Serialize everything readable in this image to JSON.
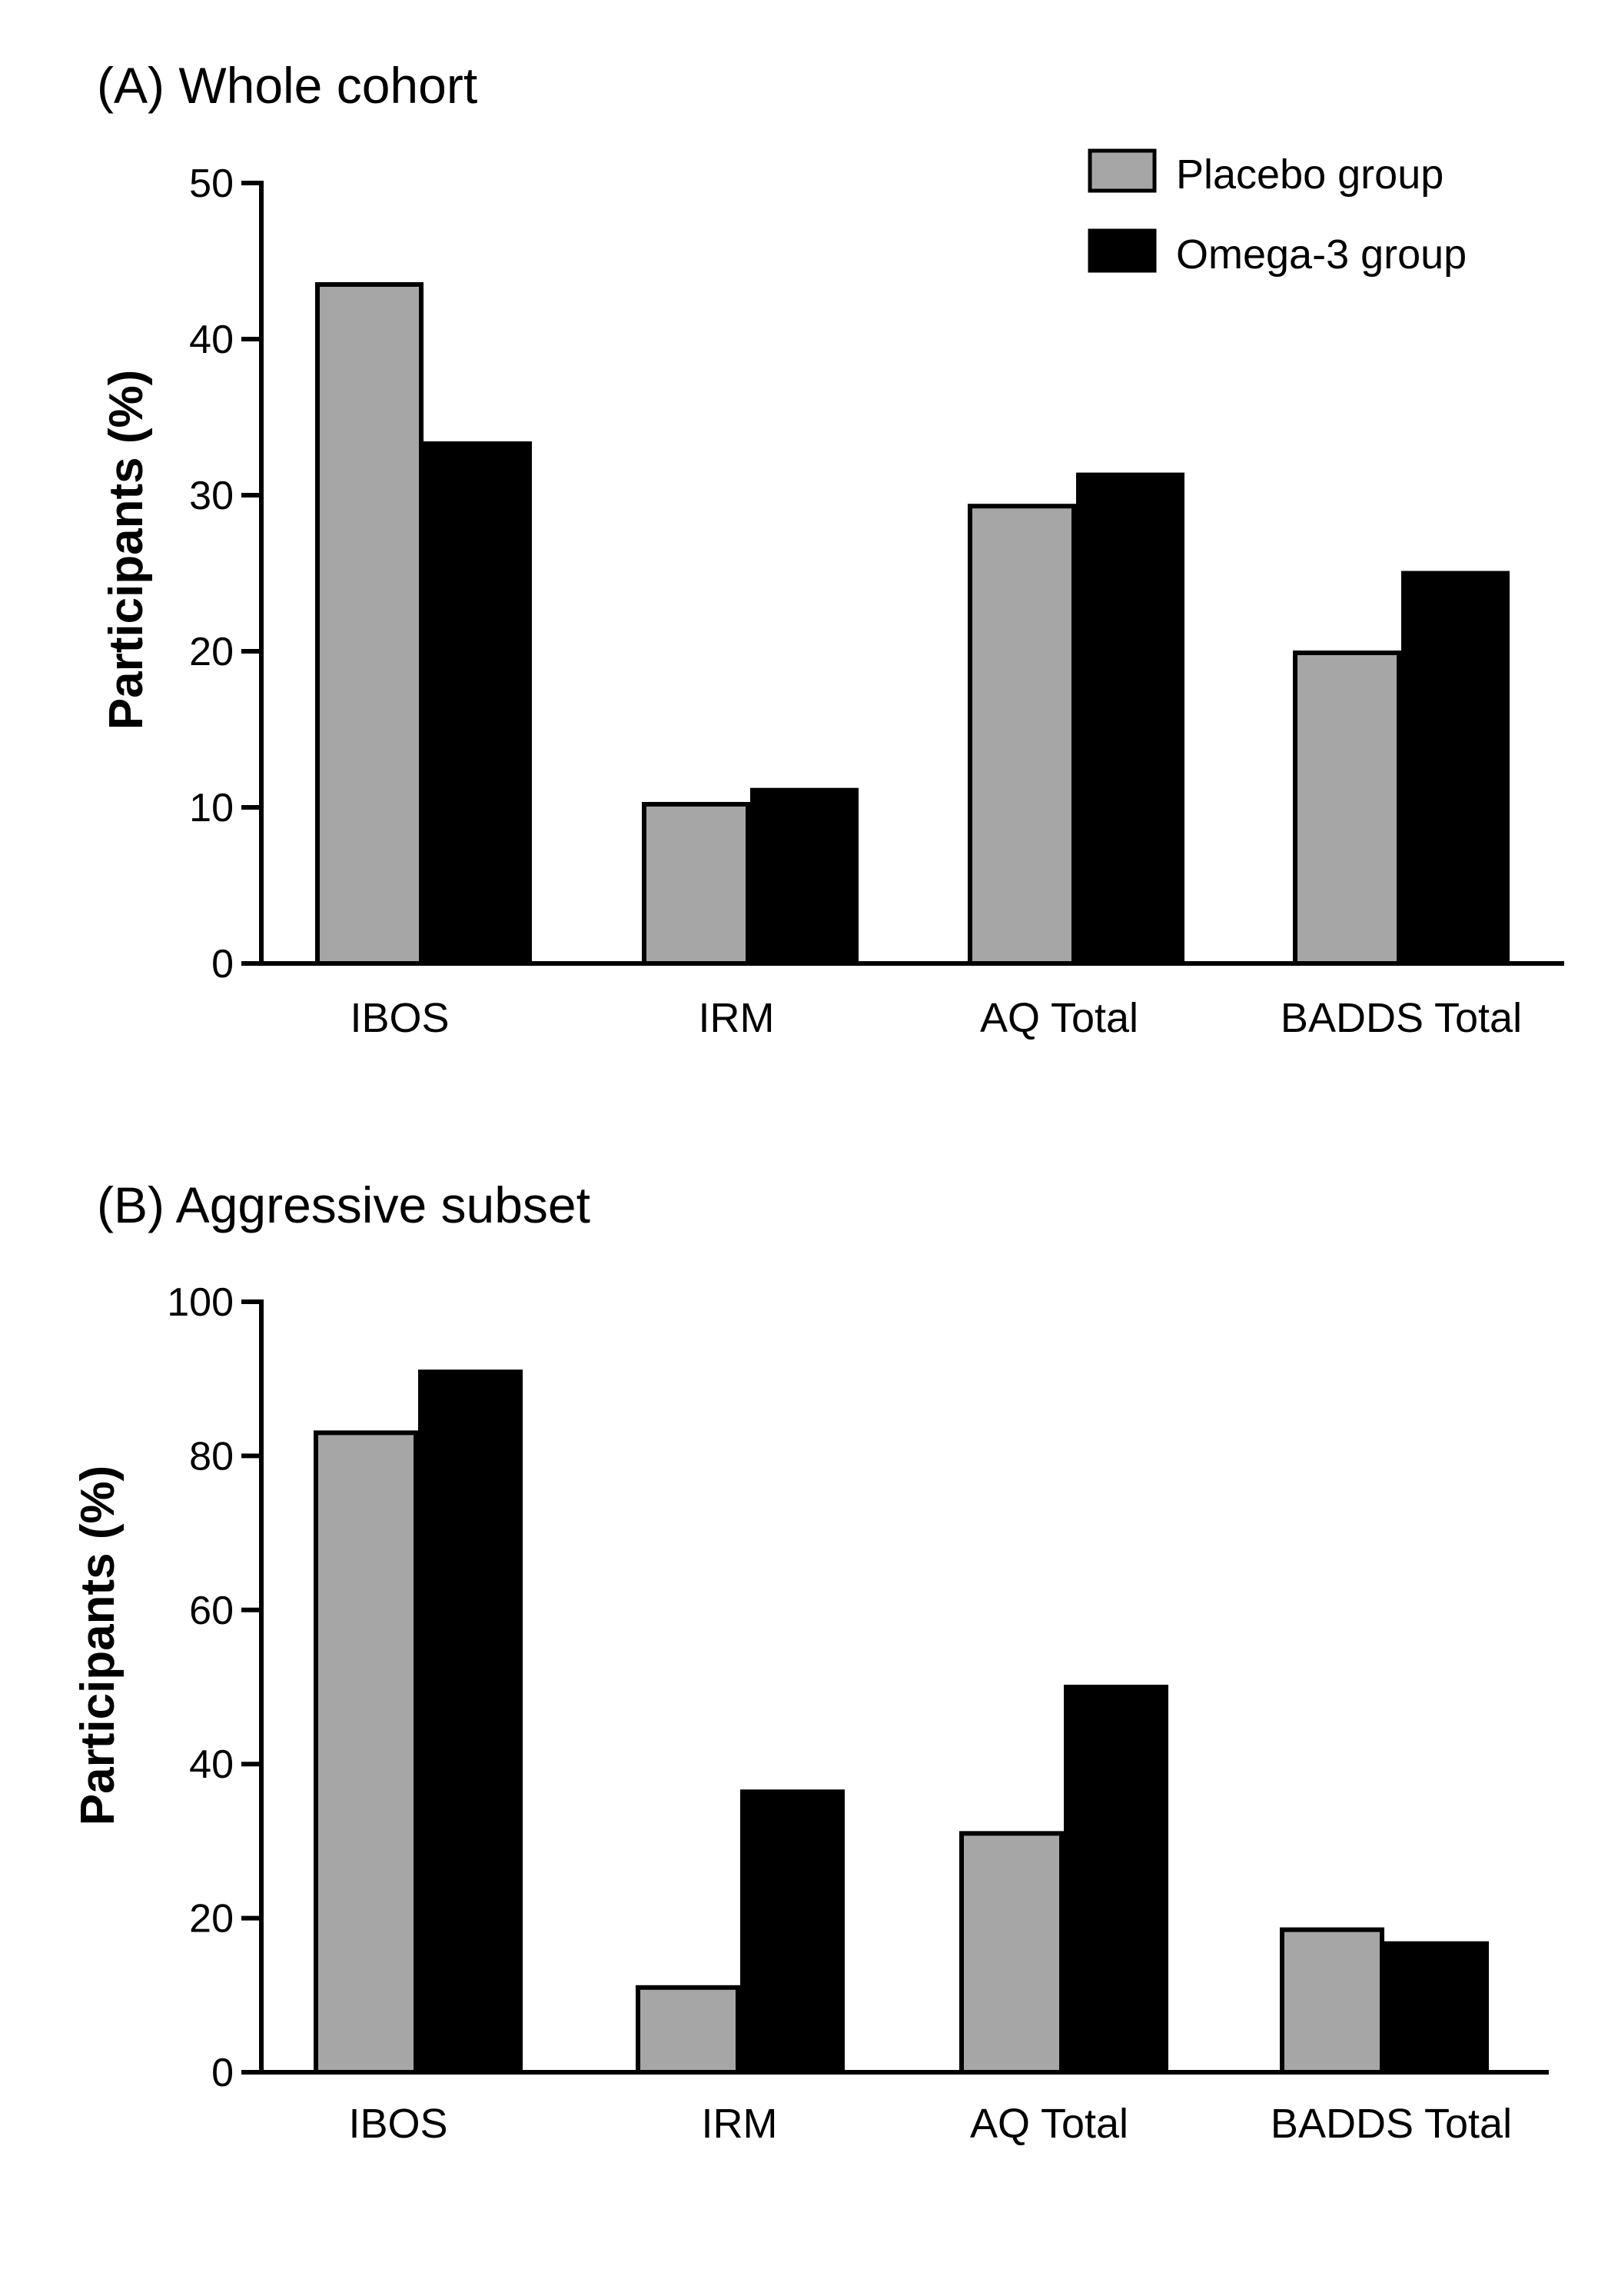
{
  "legend": {
    "items": [
      {
        "name": "Placebo group",
        "color": "#a6a6a6"
      },
      {
        "name": "Omega-3 group",
        "color": "#000000"
      }
    ]
  },
  "chart_data": [
    {
      "type": "bar",
      "title": "(A) Whole cohort",
      "xlabel": "",
      "ylabel": "Participants (%)",
      "ylim": [
        0,
        50
      ],
      "yticks": [
        "0",
        "10",
        "20",
        "30",
        "40",
        "50"
      ],
      "categories": [
        "IBOS",
        "IRM",
        "AQ Total",
        "BADDS Total"
      ],
      "series": [
        {
          "name": "Placebo group",
          "color": "#a6a6a6",
          "values": [
            43.5,
            10.2,
            29.3,
            19.9
          ]
        },
        {
          "name": "Omega-3 group",
          "color": "#000000",
          "values": [
            33.3,
            11.1,
            31.3,
            25.0
          ]
        }
      ],
      "legend_position": "top-right"
    },
    {
      "type": "bar",
      "title": "(B) Aggressive subset",
      "xlabel": "",
      "ylabel": "Participants (%)",
      "ylim": [
        0,
        100
      ],
      "yticks": [
        "0",
        "20",
        "40",
        "60",
        "80",
        "100"
      ],
      "categories": [
        "IBOS",
        "IRM",
        "AQ Total",
        "BADDS Total"
      ],
      "series": [
        {
          "name": "Placebo group",
          "color": "#a6a6a6",
          "values": [
            83.0,
            11.0,
            31.0,
            18.5
          ]
        },
        {
          "name": "Omega-3 group",
          "color": "#000000",
          "values": [
            90.9,
            36.4,
            50.0,
            16.7
          ]
        }
      ]
    }
  ]
}
